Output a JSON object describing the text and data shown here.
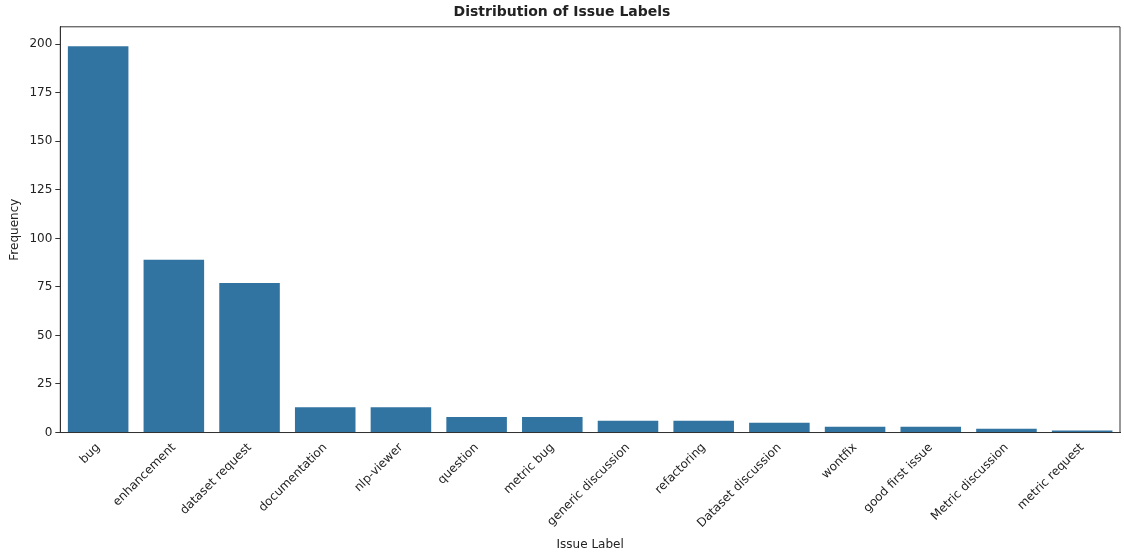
{
  "chart_data": {
    "type": "bar",
    "title": "Distribution of Issue Labels",
    "xlabel": "Issue Label",
    "ylabel": "Frequency",
    "categories": [
      "bug",
      "enhancement",
      "dataset request",
      "documentation",
      "nlp-viewer",
      "question",
      "metric bug",
      "generic discussion",
      "refactoring",
      "Dataset discussion",
      "wontfix",
      "good first issue",
      "Metric discussion",
      "metric request"
    ],
    "values": [
      199,
      89,
      77,
      13,
      13,
      8,
      8,
      6,
      6,
      5,
      3,
      3,
      2,
      1
    ],
    "color": "#3274a1",
    "ylim": [
      0,
      209
    ],
    "yticks": [
      0,
      25,
      50,
      75,
      100,
      125,
      150,
      175,
      200
    ],
    "grid": false,
    "legend": false
  }
}
